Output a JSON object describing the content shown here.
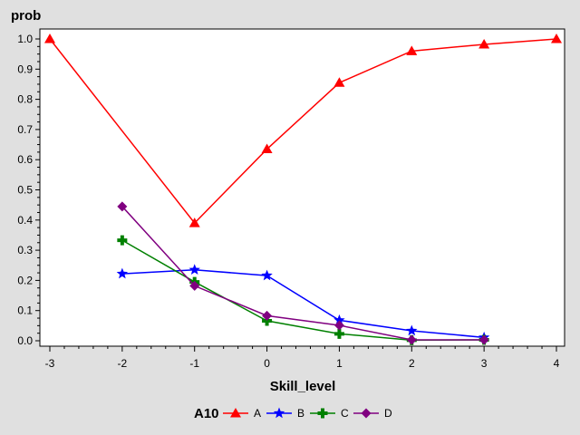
{
  "chart_data": {
    "type": "line",
    "ylabel": "prob",
    "xlabel": "Skill_level",
    "xlim": [
      -3,
      4
    ],
    "ylim": [
      0,
      1.0
    ],
    "x_ticks": [
      "-3",
      "-2",
      "-1",
      "0",
      "1",
      "2",
      "3",
      "4"
    ],
    "y_ticks": [
      "0.0",
      "0.1",
      "0.2",
      "0.3",
      "0.4",
      "0.5",
      "0.6",
      "0.7",
      "0.8",
      "0.9",
      "1.0"
    ],
    "grid": false,
    "legend": {
      "title": "A10",
      "position": "bottom"
    },
    "series": [
      {
        "name": "A",
        "color": "#ff0000",
        "marker": "triangle",
        "x": [
          -3,
          -1,
          0,
          1,
          2,
          3,
          4
        ],
        "y": [
          1.0,
          0.39,
          0.635,
          0.855,
          0.96,
          0.982,
          1.0
        ]
      },
      {
        "name": "B",
        "color": "#0000ff",
        "marker": "star",
        "x": [
          -2,
          -1,
          0,
          1,
          2,
          3
        ],
        "y": [
          0.222,
          0.235,
          0.216,
          0.068,
          0.033,
          0.011
        ]
      },
      {
        "name": "C",
        "color": "#008000",
        "marker": "plus",
        "x": [
          -2,
          -1,
          0,
          1,
          2,
          3
        ],
        "y": [
          0.333,
          0.195,
          0.066,
          0.023,
          0.002,
          0.003
        ]
      },
      {
        "name": "D",
        "color": "#800080",
        "marker": "diamond",
        "x": [
          -2,
          -1,
          0,
          1,
          2,
          3
        ],
        "y": [
          0.445,
          0.182,
          0.083,
          0.051,
          0.003,
          0.003
        ]
      }
    ]
  }
}
